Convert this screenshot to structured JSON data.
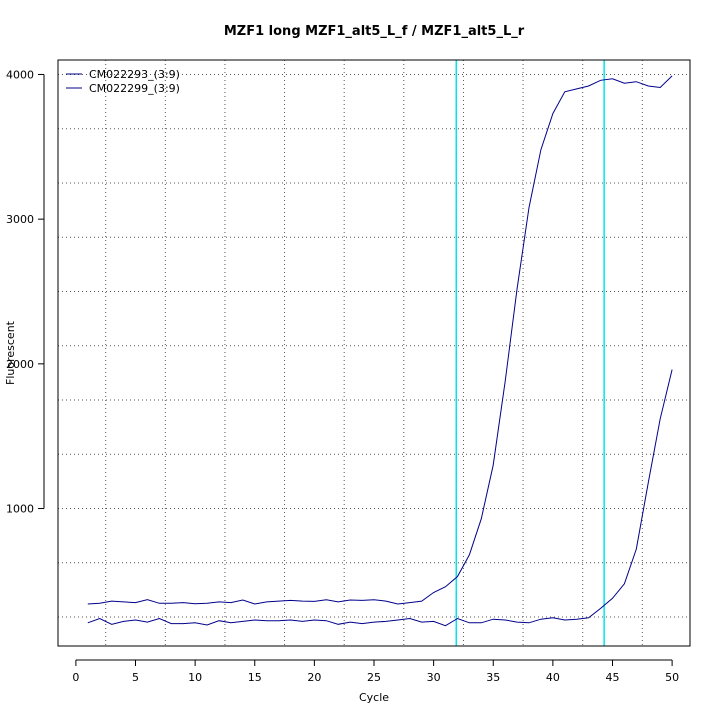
{
  "chart_data": {
    "type": "line",
    "title": "MZF1 long MZF1_alt5_L_f / MZF1_alt5_L_r",
    "xlabel": "Cycle",
    "ylabel": "Fluorescent",
    "xlim": [
      -1.5,
      51.5
    ],
    "ylim": [
      50,
      4100
    ],
    "x_ticks": [
      0,
      5,
      10,
      15,
      20,
      25,
      30,
      35,
      40,
      45,
      50
    ],
    "y_ticks": [
      1000,
      2000,
      3000,
      4000
    ],
    "grid": true,
    "legend_position": "top-left",
    "threshold_color": "#00e5ee",
    "thresholds": [
      31.9,
      44.3
    ],
    "x": [
      1,
      2,
      3,
      4,
      5,
      6,
      7,
      8,
      9,
      10,
      11,
      12,
      13,
      14,
      15,
      16,
      17,
      18,
      19,
      20,
      21,
      22,
      23,
      24,
      25,
      26,
      27,
      28,
      29,
      30,
      31,
      32,
      33,
      34,
      35,
      36,
      37,
      38,
      39,
      40,
      41,
      42,
      43,
      44,
      45,
      46,
      47,
      48,
      49,
      50
    ],
    "series": [
      {
        "name": "CM022293_(3:9)",
        "color": "#00008b",
        "values": [
          340,
          345,
          360,
          355,
          350,
          370,
          345,
          345,
          350,
          342,
          345,
          355,
          350,
          368,
          340,
          355,
          360,
          365,
          360,
          358,
          370,
          355,
          368,
          365,
          370,
          360,
          340,
          350,
          360,
          420,
          460,
          530,
          680,
          930,
          1300,
          1880,
          2520,
          3080,
          3480,
          3730,
          3880,
          3900,
          3920,
          3960,
          3970,
          3940,
          3950,
          3920,
          3910,
          3990
        ]
      },
      {
        "name": "CM022299_(3:9)",
        "color": "#00008b",
        "values": [
          210,
          240,
          200,
          220,
          230,
          215,
          240,
          205,
          205,
          210,
          195,
          225,
          210,
          220,
          230,
          225,
          225,
          230,
          220,
          230,
          225,
          200,
          215,
          205,
          215,
          220,
          230,
          240,
          215,
          220,
          190,
          240,
          210,
          210,
          235,
          230,
          215,
          210,
          235,
          245,
          230,
          235,
          245,
          310,
          380,
          480,
          720,
          1180,
          1620,
          1960
        ]
      }
    ]
  }
}
